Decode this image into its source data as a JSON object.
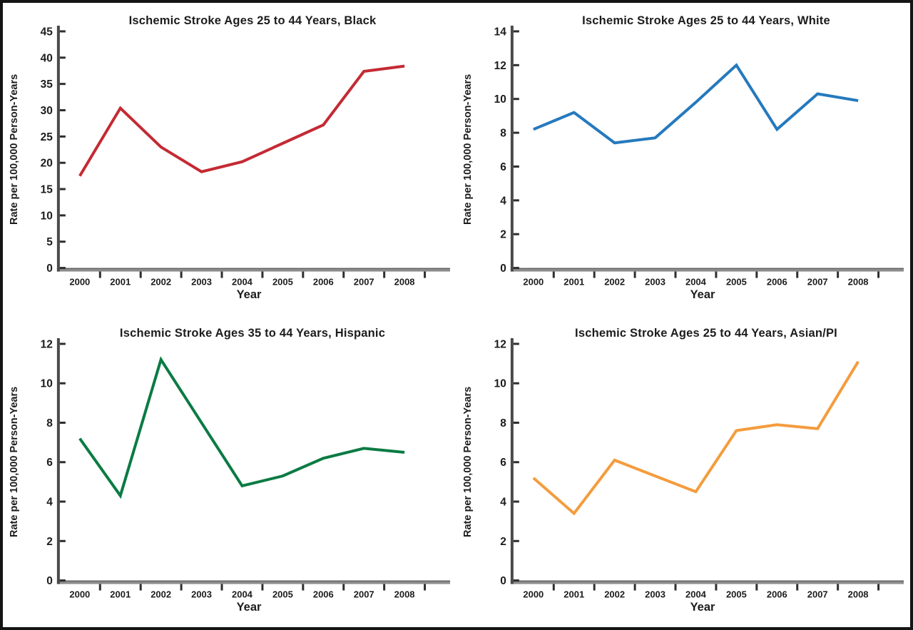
{
  "figure": {
    "background": "#ffffff",
    "frame_color": "#141414",
    "axis_spine_color": "#4a4a4a",
    "baseline_color": "#8d8d8d",
    "tick_color": "#2e2e2e",
    "text_color": "#1c1c1c"
  },
  "chart_data": [
    {
      "id": "black",
      "type": "line",
      "title": "Ischemic Stroke Ages 25 to 44 Years, Black",
      "color": "#c42a33",
      "xlabel": "Year",
      "ylabel": "Rate per 100,000 Person-Years",
      "x": [
        2000,
        2001,
        2002,
        2003,
        2004,
        2005,
        2006,
        2007,
        2008
      ],
      "values": [
        17.5,
        30.4,
        23.0,
        18.3,
        20.2,
        23.7,
        27.2,
        37.4,
        38.4
      ],
      "ylim": [
        0,
        45
      ],
      "yticks": [
        0,
        5,
        10,
        15,
        20,
        25,
        30,
        35,
        40,
        45
      ],
      "grid": false,
      "legend": "none"
    },
    {
      "id": "white",
      "type": "line",
      "title": "Ischemic Stroke Ages 25 to 44 Years, White",
      "color": "#2579bd",
      "xlabel": "Year",
      "ylabel": "Rate per 100,000 Person-Years",
      "x": [
        2000,
        2001,
        2002,
        2003,
        2004,
        2005,
        2006,
        2007,
        2008
      ],
      "values": [
        8.2,
        9.2,
        7.4,
        7.7,
        9.8,
        12.0,
        8.2,
        10.3,
        9.9
      ],
      "ylim": [
        0,
        14
      ],
      "yticks": [
        0,
        2,
        4,
        6,
        8,
        10,
        12,
        14
      ],
      "grid": false,
      "legend": "none"
    },
    {
      "id": "hispanic",
      "type": "line",
      "title": "Ischemic Stroke Ages 35 to 44 Years, Hispanic",
      "color": "#0b7b43",
      "xlabel": "Year",
      "ylabel": "Rate per 100,000 Person-Years",
      "x": [
        2000,
        2001,
        2002,
        2003,
        2004,
        2005,
        2006,
        2007,
        2008
      ],
      "values": [
        7.2,
        4.3,
        11.2,
        8.0,
        4.8,
        5.3,
        6.2,
        6.7,
        6.5
      ],
      "ylim": [
        0,
        12
      ],
      "yticks": [
        0,
        2,
        4,
        6,
        8,
        10,
        12
      ],
      "grid": false,
      "legend": "none"
    },
    {
      "id": "asian_pi",
      "type": "line",
      "title": "Ischemic Stroke Ages 25 to 44 Years, Asian/PI",
      "color": "#f49c3d",
      "xlabel": "Year",
      "ylabel": "Rate per 100,000 Person-Years",
      "x": [
        2000,
        2001,
        2002,
        2003,
        2004,
        2005,
        2006,
        2007,
        2008
      ],
      "values": [
        5.2,
        3.4,
        6.1,
        5.3,
        4.5,
        7.6,
        7.9,
        7.7,
        11.1
      ],
      "ylim": [
        0,
        12
      ],
      "yticks": [
        0,
        2,
        4,
        6,
        8,
        10,
        12
      ],
      "grid": false,
      "legend": "none"
    }
  ]
}
